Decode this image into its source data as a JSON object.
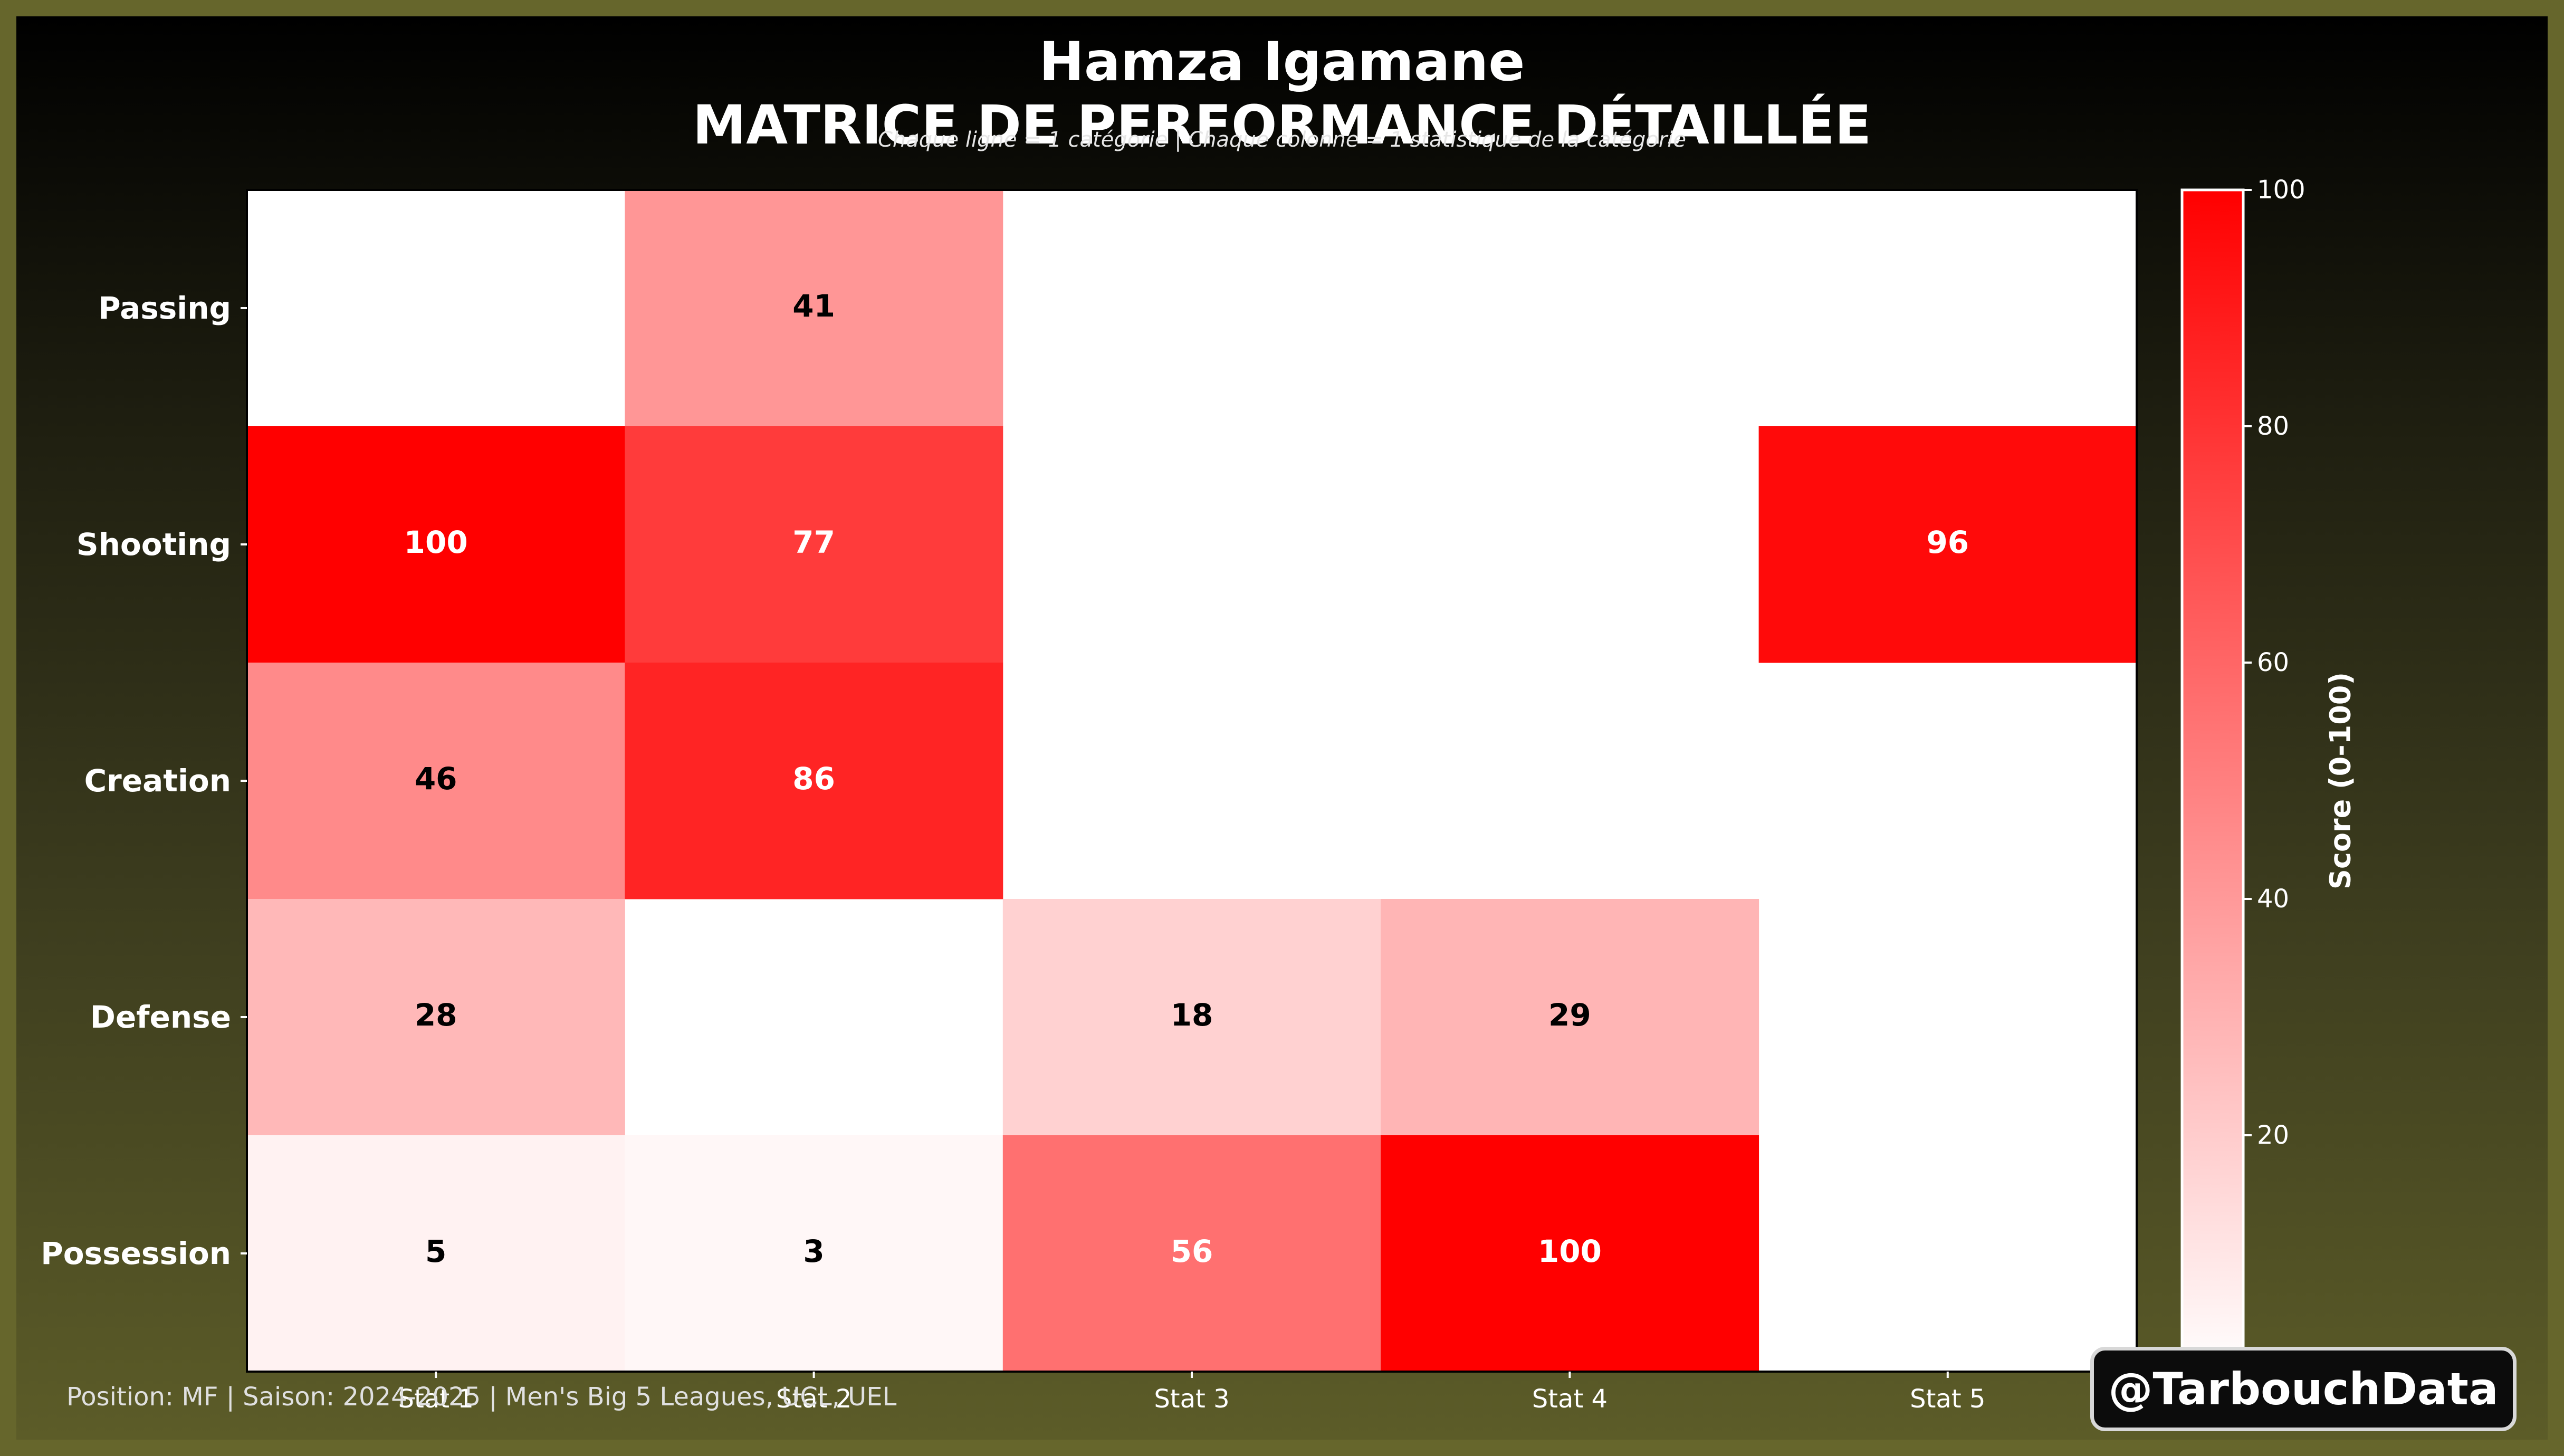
{
  "chart_data": {
    "type": "heatmap",
    "title": [
      "Hamza Igamane",
      "MATRICE DE PERFORMANCE DÉTAILLÉE"
    ],
    "subtitle": "Chaque ligne = 1 catégorie | Chaque colonne = 1 statistique de la catégorie",
    "rows": [
      "Passing",
      "Shooting",
      "Creation",
      "Defense",
      "Possession"
    ],
    "columns": [
      "Stat 1",
      "Stat 2",
      "Stat 3",
      "Stat 4",
      "Stat 5"
    ],
    "values": [
      [
        null,
        41,
        null,
        null,
        null
      ],
      [
        100,
        77,
        null,
        null,
        96
      ],
      [
        46,
        86,
        null,
        null,
        null
      ],
      [
        28,
        null,
        18,
        29,
        null
      ],
      [
        5,
        3,
        56,
        100,
        null
      ]
    ],
    "colorbar": {
      "label": "Score (0-100)",
      "range": [
        0,
        100
      ],
      "ticks": [
        0,
        20,
        40,
        60,
        80,
        100
      ],
      "colors": [
        "#ffffff",
        "#ff0000"
      ]
    }
  },
  "footer": "Position: MF | Saison: 2024-2025 | Men's Big 5 Leagues, UCL, UEL",
  "watermark": "@TarbouchData",
  "colors": {
    "border": "#66662c",
    "background_top": "#000000",
    "background_bottom": "#5c5c28",
    "text": "#ffffff",
    "accent": "#ff0000"
  }
}
